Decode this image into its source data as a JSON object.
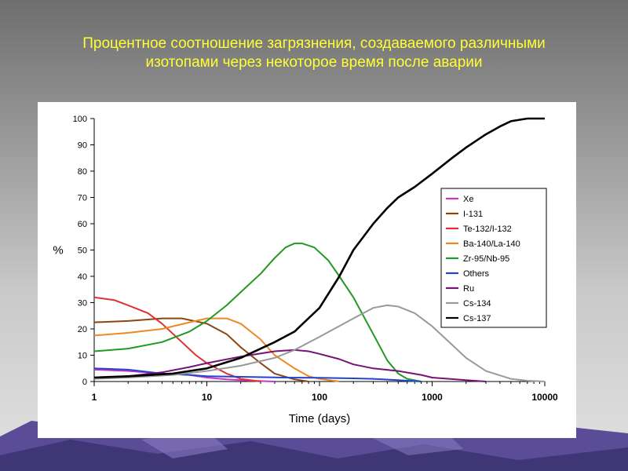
{
  "slide": {
    "title_line1": "Процентное соотношение загрязнения, создаваемого различными",
    "title_line2": "изотопами через некоторое время после аварии",
    "title_color": "#ffff33"
  },
  "chart_data": {
    "type": "line",
    "title": "",
    "xlabel": "Time (days)",
    "ylabel": "%",
    "xscale": "log",
    "xlim": [
      1,
      10000
    ],
    "ylim": [
      0,
      100
    ],
    "xticks": [
      1,
      10,
      100,
      1000,
      10000
    ],
    "xtick_labels": [
      "1",
      "10",
      "100",
      "1000",
      "10000"
    ],
    "yticks": [
      0,
      10,
      20,
      30,
      40,
      50,
      60,
      70,
      80,
      90,
      100
    ],
    "ytick_labels": [
      "0",
      "10",
      "20",
      "30",
      "40",
      "50",
      "60",
      "70",
      "80",
      "90",
      "100"
    ],
    "grid": false,
    "legend_position": "right",
    "series": [
      {
        "name": "Xe",
        "color": "#cc33cc",
        "points": [
          [
            1,
            4.5
          ],
          [
            2,
            4
          ],
          [
            4,
            3
          ],
          [
            7,
            2.5
          ],
          [
            10,
            1.5
          ],
          [
            15,
            0.8
          ],
          [
            25,
            0.3
          ],
          [
            40,
            0
          ]
        ]
      },
      {
        "name": "I-131",
        "color": "#8b4513",
        "points": [
          [
            1,
            22.5
          ],
          [
            2,
            23
          ],
          [
            4,
            24
          ],
          [
            6,
            24
          ],
          [
            10,
            22
          ],
          [
            15,
            18
          ],
          [
            20,
            13
          ],
          [
            30,
            7
          ],
          [
            40,
            3
          ],
          [
            60,
            0.8
          ],
          [
            80,
            0
          ]
        ]
      },
      {
        "name": "Te-132/I-132",
        "color": "#e03030",
        "points": [
          [
            1,
            32
          ],
          [
            1.5,
            31
          ],
          [
            2,
            29
          ],
          [
            3,
            26
          ],
          [
            4,
            22
          ],
          [
            6,
            15
          ],
          [
            8,
            10
          ],
          [
            10,
            7
          ],
          [
            15,
            3
          ],
          [
            20,
            1
          ],
          [
            30,
            0
          ]
        ]
      },
      {
        "name": "Ba-140/La-140",
        "color": "#ee8822",
        "points": [
          [
            1,
            17.5
          ],
          [
            2,
            18.5
          ],
          [
            4,
            20
          ],
          [
            7,
            22.5
          ],
          [
            10,
            24
          ],
          [
            15,
            24
          ],
          [
            20,
            22
          ],
          [
            30,
            16
          ],
          [
            40,
            10
          ],
          [
            60,
            5
          ],
          [
            80,
            2
          ],
          [
            100,
            1
          ],
          [
            150,
            0
          ]
        ]
      },
      {
        "name": "Zr-95/Nb-95",
        "color": "#229922",
        "points": [
          [
            1,
            11.5
          ],
          [
            2,
            12.5
          ],
          [
            4,
            15
          ],
          [
            7,
            19
          ],
          [
            10,
            23
          ],
          [
            15,
            29
          ],
          [
            20,
            34
          ],
          [
            30,
            41
          ],
          [
            40,
            47
          ],
          [
            50,
            51
          ],
          [
            60,
            52.5
          ],
          [
            70,
            52.5
          ],
          [
            90,
            51
          ],
          [
            120,
            46
          ],
          [
            150,
            40
          ],
          [
            200,
            32
          ],
          [
            300,
            18
          ],
          [
            400,
            8
          ],
          [
            500,
            3
          ],
          [
            600,
            1
          ],
          [
            800,
            0
          ]
        ]
      },
      {
        "name": "Others",
        "color": "#2244cc",
        "points": [
          [
            1,
            5
          ],
          [
            2,
            4.5
          ],
          [
            4,
            3
          ],
          [
            7,
            2.5
          ],
          [
            10,
            2
          ],
          [
            20,
            1.8
          ],
          [
            50,
            1.5
          ],
          [
            100,
            1.4
          ],
          [
            200,
            1.2
          ],
          [
            300,
            1
          ],
          [
            500,
            0.5
          ],
          [
            800,
            0
          ]
        ]
      },
      {
        "name": "Ru",
        "color": "#771177",
        "points": [
          [
            1,
            1.5
          ],
          [
            2,
            2
          ],
          [
            4,
            3.5
          ],
          [
            7,
            5.5
          ],
          [
            10,
            7
          ],
          [
            20,
            9.5
          ],
          [
            40,
            11.5
          ],
          [
            60,
            12
          ],
          [
            80,
            11.5
          ],
          [
            100,
            10.5
          ],
          [
            150,
            8.5
          ],
          [
            200,
            6.5
          ],
          [
            300,
            5
          ],
          [
            500,
            4
          ],
          [
            800,
            2.5
          ],
          [
            1000,
            1.5
          ],
          [
            2000,
            0.5
          ],
          [
            3000,
            0
          ]
        ]
      },
      {
        "name": "Cs-134",
        "color": "#999999",
        "points": [
          [
            1,
            1
          ],
          [
            2,
            1.5
          ],
          [
            5,
            2.5
          ],
          [
            10,
            4
          ],
          [
            20,
            6
          ],
          [
            40,
            9
          ],
          [
            60,
            12
          ],
          [
            100,
            17
          ],
          [
            200,
            24
          ],
          [
            300,
            28
          ],
          [
            400,
            29
          ],
          [
            500,
            28.5
          ],
          [
            700,
            26
          ],
          [
            1000,
            21
          ],
          [
            1500,
            14
          ],
          [
            2000,
            9
          ],
          [
            3000,
            4
          ],
          [
            5000,
            1
          ],
          [
            7000,
            0.3
          ],
          [
            10000,
            0
          ]
        ]
      },
      {
        "name": "Cs-137",
        "color": "#000000",
        "points": [
          [
            1,
            1.5
          ],
          [
            2,
            2
          ],
          [
            5,
            3
          ],
          [
            10,
            5
          ],
          [
            20,
            9
          ],
          [
            40,
            15
          ],
          [
            60,
            19
          ],
          [
            100,
            28
          ],
          [
            150,
            40
          ],
          [
            200,
            50
          ],
          [
            300,
            60
          ],
          [
            400,
            66
          ],
          [
            500,
            70
          ],
          [
            700,
            74
          ],
          [
            1000,
            79
          ],
          [
            1500,
            85
          ],
          [
            2000,
            89
          ],
          [
            3000,
            94
          ],
          [
            4000,
            97
          ],
          [
            5000,
            99
          ],
          [
            7000,
            100
          ],
          [
            10000,
            100
          ]
        ]
      }
    ]
  }
}
